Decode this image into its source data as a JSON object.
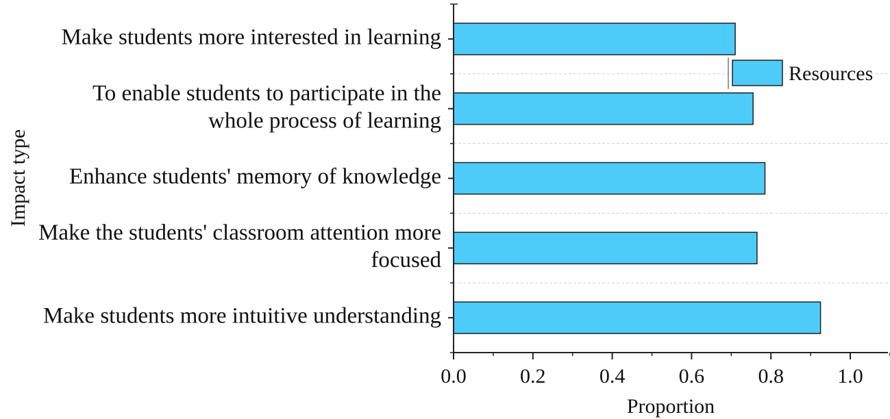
{
  "chart_data": {
    "type": "bar",
    "orientation": "horizontal",
    "title": "",
    "xlabel": "Proportion",
    "ylabel": "Impact type",
    "categories": [
      [
        "Make students more interested in learning"
      ],
      [
        "To enable students to participate in the",
        "whole process of learning"
      ],
      [
        "Enhance students' memory of knowledge"
      ],
      [
        "Make the students' classroom attention more",
        "focused"
      ],
      [
        "Make students more intuitive understanding"
      ]
    ],
    "series": [
      {
        "name": "Resources",
        "color": "#4DCCF9",
        "values": [
          0.71,
          0.755,
          0.785,
          0.765,
          0.925
        ]
      }
    ],
    "xlim": [
      0.0,
      1.1
    ],
    "xticks": [
      "0.0",
      "0.2",
      "0.4",
      "0.6",
      "0.8",
      "1.0"
    ],
    "xtick_values": [
      0.0,
      0.2,
      0.4,
      0.6,
      0.8,
      1.0
    ],
    "grid": "dashed horizontal separators between categories",
    "legend_position": "top-right"
  }
}
